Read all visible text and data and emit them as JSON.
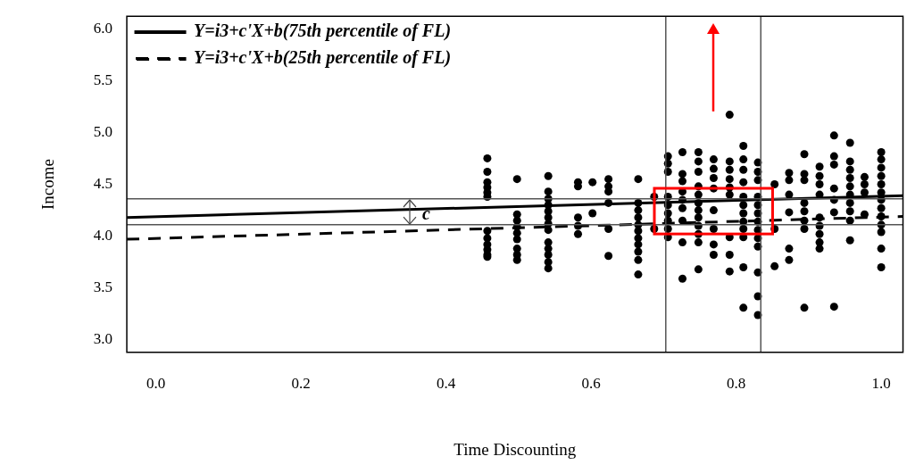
{
  "chart_data": {
    "type": "scatter",
    "xlabel": "Time Discounting",
    "ylabel": "Income",
    "xlim": [
      -0.04,
      1.03
    ],
    "ylim": [
      2.88,
      6.12
    ],
    "xticks": [
      {
        "value": 0,
        "label": "0.0"
      },
      {
        "value": 0.2,
        "label": "0.2"
      },
      {
        "value": 0.4,
        "label": "0.4"
      },
      {
        "value": 0.6,
        "label": "0.6"
      },
      {
        "value": 0.8,
        "label": "0.8"
      },
      {
        "value": 1,
        "label": "1.0"
      }
    ],
    "yticks": [
      {
        "value": 3,
        "label": "3.0"
      },
      {
        "value": 3.5,
        "label": "3.5"
      },
      {
        "value": 4,
        "label": "4.0"
      },
      {
        "value": 4.5,
        "label": "4.5"
      },
      {
        "value": 5,
        "label": "5.0"
      },
      {
        "value": 5.5,
        "label": "5.5"
      },
      {
        "value": 6,
        "label": "6.0"
      }
    ],
    "grid": false,
    "legend": "top left",
    "marker": "circle",
    "series": [
      {
        "type": "line",
        "name": "Y=i3+c'X+b(75th percentile of FL)",
        "color": "#000000",
        "line_style": "solid",
        "marker": "none",
        "x": [
          -0.04,
          1.03
        ],
        "values": [
          4.18,
          4.39
        ]
      },
      {
        "type": "line",
        "name": "Y=i3+c'X+b(25th percentile of FL)",
        "color": "#000000",
        "line_style": "dashed",
        "marker": "none",
        "x": [
          -0.04,
          1.03
        ],
        "values": [
          3.97,
          4.19
        ]
      },
      {
        "color": "#000000",
        "x": [
          0.457,
          0.457,
          0.457,
          0.457,
          0.457,
          0.457,
          0.457,
          0.457,
          0.457,
          0.457,
          0.457,
          0.457,
          0.498,
          0.498,
          0.498,
          0.498,
          0.498,
          0.498,
          0.498,
          0.498,
          0.498,
          0.541,
          0.541,
          0.541,
          0.541,
          0.541,
          0.541,
          0.541,
          0.541,
          0.541,
          0.541,
          0.541,
          0.541,
          0.541,
          0.582,
          0.582,
          0.582,
          0.582,
          0.582,
          0.602,
          0.602,
          0.624,
          0.624,
          0.624,
          0.624,
          0.624,
          0.624,
          0.665,
          0.665,
          0.665,
          0.665,
          0.665,
          0.665,
          0.665,
          0.665,
          0.665,
          0.665,
          0.665,
          0.687,
          0.687,
          0.706,
          0.706,
          0.706,
          0.706,
          0.706,
          0.706,
          0.706,
          0.706,
          0.706,
          0.726,
          0.726,
          0.726,
          0.726,
          0.726,
          0.726,
          0.726,
          0.726,
          0.726,
          0.748,
          0.748,
          0.748,
          0.748,
          0.748,
          0.748,
          0.748,
          0.748,
          0.748,
          0.748,
          0.748,
          0.748,
          0.769,
          0.769,
          0.769,
          0.769,
          0.769,
          0.769,
          0.769,
          0.769,
          0.791,
          0.791,
          0.791,
          0.791,
          0.791,
          0.791,
          0.791,
          0.791,
          0.791,
          0.81,
          0.81,
          0.81,
          0.81,
          0.81,
          0.81,
          0.81,
          0.81,
          0.81,
          0.81,
          0.81,
          0.81,
          0.83,
          0.83,
          0.83,
          0.83,
          0.83,
          0.83,
          0.83,
          0.83,
          0.83,
          0.83,
          0.83,
          0.83,
          0.83,
          0.853,
          0.853,
          0.853,
          0.873,
          0.873,
          0.873,
          0.873,
          0.873,
          0.873,
          0.894,
          0.894,
          0.894,
          0.894,
          0.894,
          0.894,
          0.894,
          0.894,
          0.915,
          0.915,
          0.915,
          0.915,
          0.915,
          0.915,
          0.915,
          0.915,
          0.915,
          0.935,
          0.935,
          0.935,
          0.935,
          0.935,
          0.935,
          0.935,
          0.957,
          0.957,
          0.957,
          0.957,
          0.957,
          0.957,
          0.957,
          0.957,
          0.957,
          0.957,
          0.977,
          0.977,
          0.977,
          0.977,
          1.0,
          1.0,
          1.0,
          1.0,
          1.0,
          1.0,
          1.0,
          1.0,
          1.0,
          1.0,
          1.0,
          1.0,
          1.0
        ],
        "values": [
          4.75,
          4.62,
          4.52,
          4.47,
          4.42,
          4.38,
          4.05,
          3.98,
          3.92,
          3.87,
          3.82,
          3.8,
          4.55,
          4.21,
          4.15,
          4.09,
          4.03,
          3.97,
          3.88,
          3.82,
          3.77,
          4.58,
          4.43,
          4.36,
          4.3,
          4.24,
          4.18,
          4.12,
          4.06,
          3.94,
          3.88,
          3.82,
          3.75,
          3.69,
          4.52,
          4.48,
          4.18,
          4.1,
          4.02,
          4.52,
          4.22,
          4.55,
          4.48,
          4.43,
          4.32,
          4.07,
          3.81,
          4.55,
          4.32,
          4.25,
          4.18,
          4.11,
          4.05,
          3.98,
          3.92,
          3.85,
          3.77,
          3.63,
          4.38,
          4.07,
          4.77,
          4.7,
          4.62,
          4.38,
          4.3,
          4.22,
          4.15,
          4.07,
          3.99,
          4.81,
          4.6,
          4.53,
          4.43,
          4.35,
          4.27,
          4.15,
          3.94,
          3.59,
          4.81,
          4.72,
          4.62,
          4.48,
          4.4,
          4.32,
          4.25,
          4.18,
          4.1,
          4.02,
          3.94,
          3.68,
          4.74,
          4.65,
          4.56,
          4.46,
          4.25,
          4.07,
          3.92,
          3.82,
          5.17,
          4.72,
          4.64,
          4.55,
          4.47,
          4.4,
          3.99,
          3.82,
          3.66,
          4.87,
          4.74,
          4.64,
          4.52,
          4.38,
          4.3,
          4.22,
          4.14,
          4.07,
          3.99,
          3.7,
          3.31,
          4.71,
          4.62,
          4.54,
          4.38,
          4.3,
          4.22,
          4.14,
          4.06,
          3.98,
          3.9,
          3.65,
          3.42,
          3.24,
          4.5,
          4.07,
          3.71,
          4.61,
          4.54,
          4.4,
          4.23,
          3.88,
          3.77,
          4.79,
          4.6,
          4.54,
          4.32,
          4.24,
          4.15,
          4.07,
          3.31,
          4.67,
          4.58,
          4.5,
          4.4,
          4.18,
          4.1,
          4.02,
          3.94,
          3.88,
          4.97,
          4.77,
          4.69,
          4.46,
          4.35,
          4.23,
          3.32,
          4.9,
          4.72,
          4.64,
          4.56,
          4.48,
          4.4,
          4.32,
          4.24,
          4.15,
          3.96,
          4.57,
          4.5,
          4.42,
          4.21,
          4.81,
          4.74,
          4.66,
          4.58,
          4.5,
          4.42,
          4.35,
          4.27,
          4.19,
          4.11,
          4.04,
          3.88,
          3.7
        ]
      }
    ],
    "ref_lines": [
      {
        "axis": "y",
        "value": 4.36,
        "color": "#555555"
      },
      {
        "axis": "y",
        "value": 4.11,
        "color": "#555555"
      },
      {
        "axis": "x",
        "value": 0.703,
        "color": "#555555"
      },
      {
        "axis": "x",
        "value": 0.834,
        "color": "#555555"
      }
    ],
    "annotations": [
      "c"
    ]
  }
}
